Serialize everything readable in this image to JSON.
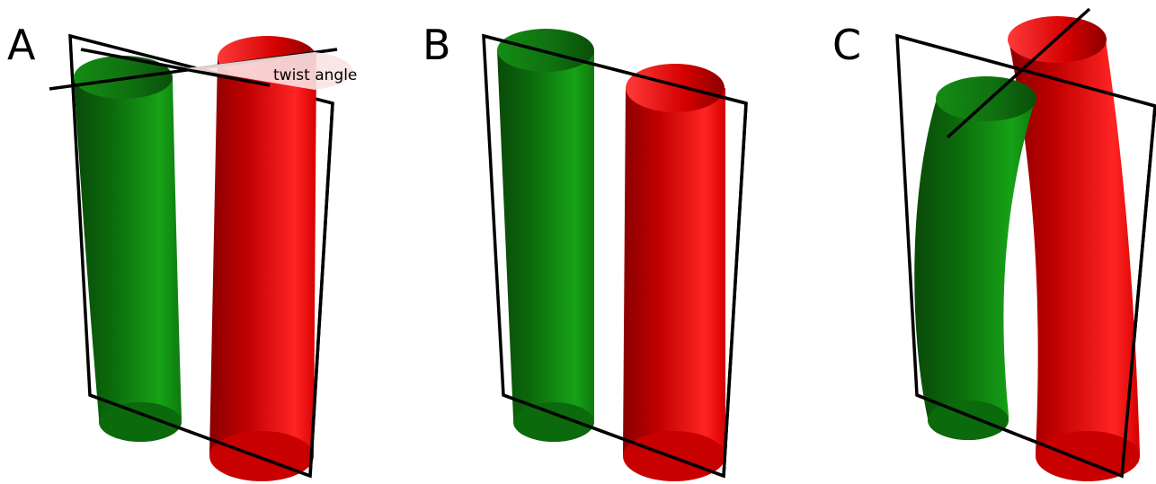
{
  "panels": [
    {
      "label": "A",
      "annotation": "twist angle"
    },
    {
      "label": "B"
    },
    {
      "label": "C"
    }
  ],
  "colors": {
    "helix_1": "#1f9a1f",
    "helix_2": "#ff1a1a",
    "frame": "#000000",
    "background": "#ffffff"
  }
}
